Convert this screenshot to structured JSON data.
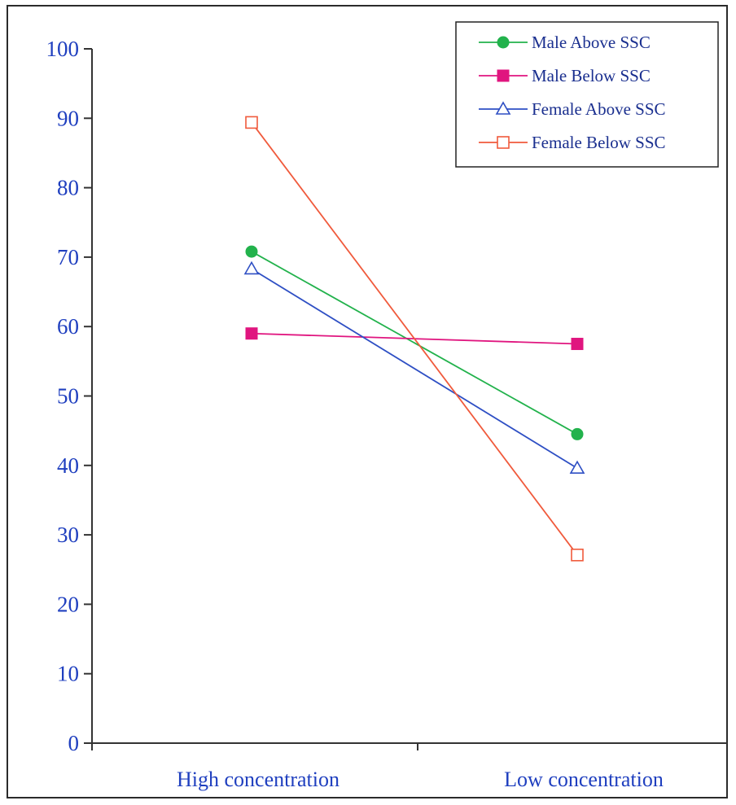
{
  "chart_data": {
    "type": "line",
    "categories": [
      "High concentration",
      "Low concentration"
    ],
    "ylim": [
      0,
      100
    ],
    "yticks": [
      0,
      10,
      20,
      30,
      40,
      50,
      60,
      70,
      80,
      90,
      100
    ],
    "grid": false,
    "legend_position": "top-right",
    "series": [
      {
        "name": "Male Above SSC",
        "values": [
          70.8,
          44.5
        ],
        "color": "#22b24c",
        "marker": "filled-circle"
      },
      {
        "name": "Male Below SSC",
        "values": [
          59.0,
          57.5
        ],
        "color": "#e0157f",
        "marker": "filled-square"
      },
      {
        "name": "Female Above SSC",
        "values": [
          68.3,
          39.6
        ],
        "color": "#2e4fc4",
        "marker": "hollow-triangle"
      },
      {
        "name": "Female Below SSC",
        "values": [
          89.4,
          27.1
        ],
        "color": "#f05a3c",
        "marker": "hollow-square"
      }
    ]
  }
}
